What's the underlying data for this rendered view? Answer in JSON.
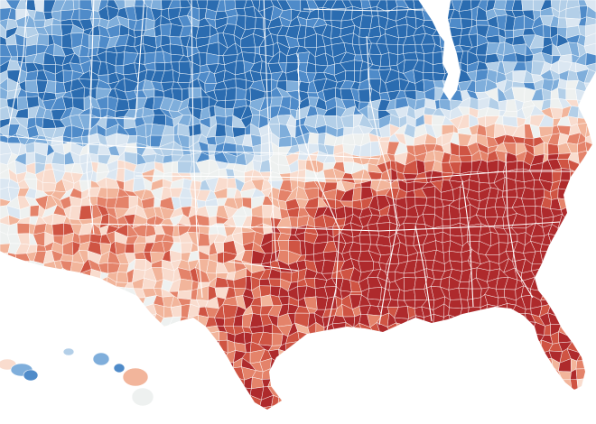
{
  "map": {
    "kind": "choropleth",
    "units": "counties",
    "region": "contiguous-us-plus-hawaii",
    "palette": {
      "ocean": "#ffffff",
      "border": "#ffffff",
      "blue_5": "#2b6cb0",
      "blue_4": "#4f8bc9",
      "blue_3": "#7faedb",
      "blue_2": "#b3cfe8",
      "blue_1": "#dbe7f2",
      "neutral": "#eef1f0",
      "red_1": "#f9dcce",
      "red_2": "#f2b59b",
      "red_3": "#e4836a",
      "red_4": "#cf5443",
      "red_5": "#ae2a2c"
    },
    "legend_visible": false,
    "labels_visible": false
  }
}
